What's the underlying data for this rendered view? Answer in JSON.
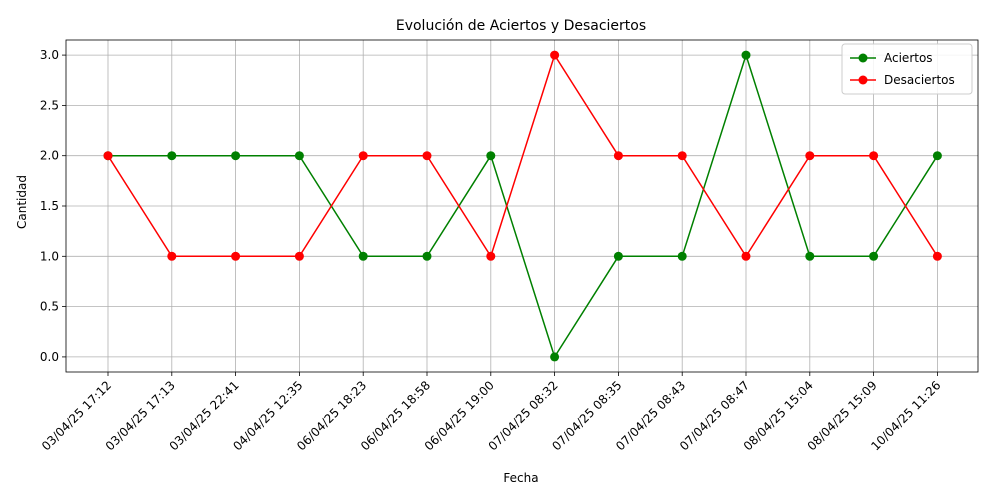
{
  "chart_data": {
    "type": "line",
    "title": "Evolución de Aciertos y Desaciertos",
    "xlabel": "Fecha",
    "ylabel": "Cantidad",
    "categories": [
      "03/04/25 17:12",
      "03/04/25 17:13",
      "03/04/25 22:41",
      "04/04/25 12:35",
      "06/04/25 18:23",
      "06/04/25 18:58",
      "06/04/25 19:00",
      "07/04/25 08:32",
      "07/04/25 08:35",
      "07/04/25 08:43",
      "07/04/25 08:47",
      "08/04/25 15:04",
      "08/04/25 15:09",
      "10/04/25 11:26"
    ],
    "series": [
      {
        "name": "Aciertos",
        "color": "#008000",
        "marker": "circle",
        "values": [
          2,
          2,
          2,
          2,
          1,
          1,
          2,
          0,
          1,
          1,
          3,
          1,
          1,
          2
        ]
      },
      {
        "name": "Desaciertos",
        "color": "#ff0000",
        "marker": "circle",
        "values": [
          2,
          1,
          1,
          1,
          2,
          2,
          1,
          3,
          2,
          2,
          1,
          2,
          2,
          1
        ]
      }
    ],
    "ylim": [
      -0.15,
      3.15
    ],
    "yticks": [
      "0.0",
      "0.5",
      "1.0",
      "1.5",
      "2.0",
      "2.5",
      "3.0"
    ],
    "grid": true,
    "legend_position": "top-right",
    "x_tick_rotation": "45"
  }
}
